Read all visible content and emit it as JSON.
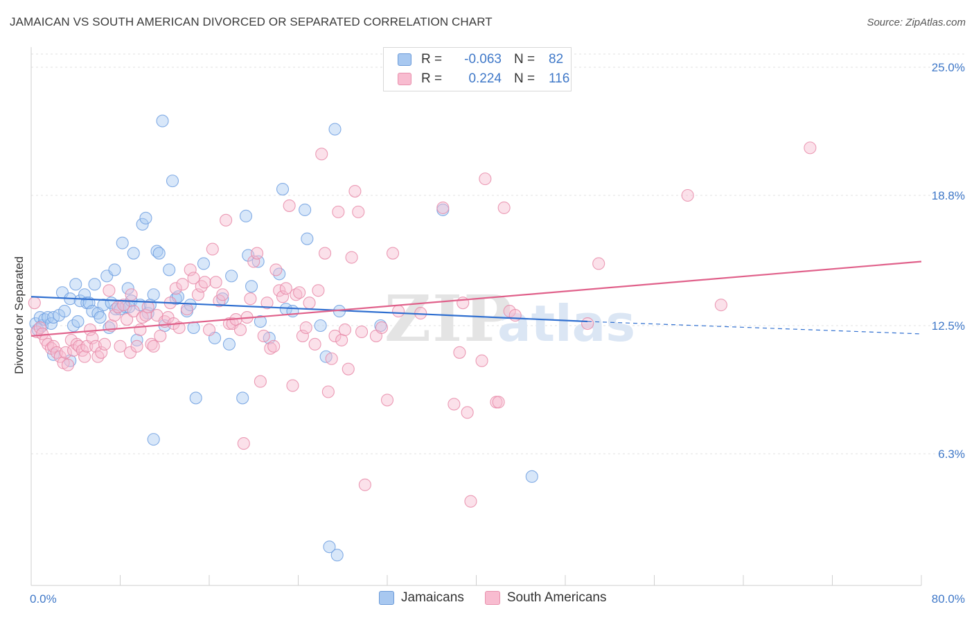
{
  "header": {
    "title": "JAMAICAN VS SOUTH AMERICAN DIVORCED OR SEPARATED CORRELATION CHART",
    "source": "Source: ZipAtlas.com"
  },
  "legend": {
    "r_label": "R =",
    "n_label": "N =",
    "rows": [
      {
        "r": "-0.063",
        "n": "82",
        "color": "#a8c8f0",
        "border": "#6a9ad8"
      },
      {
        "r": "0.224",
        "n": "116",
        "color": "#f8bcd0",
        "border": "#e890ac"
      }
    ]
  },
  "watermark": {
    "part1": "ZIP",
    "part2": "atlas"
  },
  "chart_data": {
    "type": "scatter",
    "ylabel": "Divorced or Separated",
    "xlim": [
      0,
      80
    ],
    "ylim": [
      0,
      25
    ],
    "x_tick_labels": [
      "0.0%",
      "80.0%"
    ],
    "y_ticks": [
      6.3,
      12.5,
      18.8,
      25.0
    ],
    "y_tick_labels": [
      "6.3%",
      "12.5%",
      "18.8%",
      "25.0%"
    ],
    "grid": "dashed horizontal",
    "legend_position": "top-center",
    "series": [
      {
        "name": "Jamaicans",
        "color": "#6f9fe0",
        "fill": "#a9c9f1",
        "trend": {
          "x": [
            0,
            50.0
          ],
          "y": [
            13.9,
            12.7
          ],
          "dashed_to": [
            80,
            12.1
          ]
        },
        "points": [
          [
            0.4,
            12.6
          ],
          [
            0.6,
            12.3
          ],
          [
            0.8,
            12.9
          ],
          [
            1.0,
            12.5
          ],
          [
            1.2,
            12.8
          ],
          [
            1.5,
            12.9
          ],
          [
            1.8,
            12.6
          ],
          [
            2.0,
            12.9
          ],
          [
            2.5,
            13.0
          ],
          [
            2.8,
            14.1
          ],
          [
            3.0,
            13.2
          ],
          [
            3.5,
            13.8
          ],
          [
            3.8,
            12.5
          ],
          [
            4.0,
            14.5
          ],
          [
            4.2,
            12.7
          ],
          [
            4.4,
            13.7
          ],
          [
            4.8,
            14.0
          ],
          [
            5.0,
            13.6
          ],
          [
            5.2,
            13.6
          ],
          [
            5.5,
            13.2
          ],
          [
            5.7,
            14.5
          ],
          [
            6.0,
            13.1
          ],
          [
            6.2,
            12.9
          ],
          [
            6.5,
            13.5
          ],
          [
            6.8,
            14.9
          ],
          [
            7.0,
            12.4
          ],
          [
            7.2,
            13.6
          ],
          [
            7.5,
            15.2
          ],
          [
            7.6,
            13.3
          ],
          [
            8.0,
            13.3
          ],
          [
            8.2,
            16.5
          ],
          [
            8.5,
            13.4
          ],
          [
            8.7,
            14.3
          ],
          [
            8.8,
            13.4
          ],
          [
            9.0,
            13.7
          ],
          [
            9.2,
            16.0
          ],
          [
            9.5,
            11.8
          ],
          [
            9.8,
            13.5
          ],
          [
            10.0,
            17.4
          ],
          [
            10.3,
            17.7
          ],
          [
            10.5,
            13.1
          ],
          [
            10.7,
            13.5
          ],
          [
            11.0,
            14.0
          ],
          [
            11.3,
            16.1
          ],
          [
            11.5,
            16.0
          ],
          [
            11.8,
            22.4
          ],
          [
            12.0,
            12.5
          ],
          [
            12.4,
            15.2
          ],
          [
            12.7,
            19.5
          ],
          [
            13.0,
            13.8
          ],
          [
            13.2,
            13.9
          ],
          [
            14.0,
            13.2
          ],
          [
            14.3,
            13.5
          ],
          [
            14.6,
            12.4
          ],
          [
            14.8,
            9.0
          ],
          [
            15.5,
            15.5
          ],
          [
            16.5,
            11.9
          ],
          [
            17.2,
            13.8
          ],
          [
            17.8,
            11.6
          ],
          [
            18.0,
            14.9
          ],
          [
            19.0,
            9.0
          ],
          [
            19.3,
            17.8
          ],
          [
            19.5,
            15.9
          ],
          [
            19.8,
            14.4
          ],
          [
            20.4,
            15.6
          ],
          [
            20.6,
            12.7
          ],
          [
            21.4,
            11.9
          ],
          [
            22.3,
            15.0
          ],
          [
            22.6,
            19.1
          ],
          [
            22.9,
            13.3
          ],
          [
            23.5,
            13.2
          ],
          [
            24.6,
            18.1
          ],
          [
            24.8,
            16.7
          ],
          [
            26.0,
            12.5
          ],
          [
            26.5,
            11.0
          ],
          [
            27.3,
            22.0
          ],
          [
            27.7,
            13.2
          ],
          [
            26.8,
            1.8
          ],
          [
            27.5,
            1.4
          ],
          [
            31.4,
            12.5
          ],
          [
            37.0,
            18.1
          ],
          [
            45.0,
            5.2
          ],
          [
            11.0,
            7.0
          ],
          [
            3.5,
            10.8
          ],
          [
            2.0,
            11.1
          ]
        ]
      },
      {
        "name": "South Americans",
        "color": "#e88aa8",
        "fill": "#f7bdd0",
        "trend": {
          "x": [
            0,
            80
          ],
          "y": [
            12.0,
            15.6
          ]
        },
        "points": [
          [
            0.3,
            13.6
          ],
          [
            0.5,
            12.2
          ],
          [
            0.8,
            12.4
          ],
          [
            1.0,
            12.1
          ],
          [
            1.3,
            11.8
          ],
          [
            1.5,
            11.6
          ],
          [
            1.8,
            11.4
          ],
          [
            2.0,
            11.5
          ],
          [
            2.3,
            11.2
          ],
          [
            2.6,
            11.0
          ],
          [
            2.9,
            10.7
          ],
          [
            3.1,
            11.2
          ],
          [
            3.3,
            10.6
          ],
          [
            3.6,
            11.8
          ],
          [
            3.8,
            11.3
          ],
          [
            4.1,
            11.6
          ],
          [
            4.3,
            11.5
          ],
          [
            4.6,
            11.3
          ],
          [
            4.8,
            11.0
          ],
          [
            5.0,
            11.5
          ],
          [
            5.3,
            12.3
          ],
          [
            5.5,
            11.9
          ],
          [
            5.8,
            11.5
          ],
          [
            6.0,
            11.0
          ],
          [
            6.3,
            11.2
          ],
          [
            6.6,
            11.6
          ],
          [
            7.0,
            14.2
          ],
          [
            7.2,
            12.5
          ],
          [
            7.5,
            13.0
          ],
          [
            7.8,
            13.4
          ],
          [
            8.0,
            11.5
          ],
          [
            8.3,
            13.5
          ],
          [
            8.6,
            12.8
          ],
          [
            8.9,
            11.2
          ],
          [
            9.0,
            14.0
          ],
          [
            9.2,
            13.2
          ],
          [
            9.5,
            11.5
          ],
          [
            9.8,
            12.3
          ],
          [
            10.0,
            12.9
          ],
          [
            10.3,
            13.0
          ],
          [
            10.5,
            13.4
          ],
          [
            10.8,
            11.6
          ],
          [
            11.0,
            11.5
          ],
          [
            11.3,
            13.0
          ],
          [
            11.6,
            12.0
          ],
          [
            12.0,
            12.7
          ],
          [
            12.3,
            12.9
          ],
          [
            12.5,
            13.6
          ],
          [
            12.8,
            12.6
          ],
          [
            13.0,
            14.3
          ],
          [
            13.3,
            12.4
          ],
          [
            13.6,
            14.5
          ],
          [
            14.0,
            13.3
          ],
          [
            14.3,
            15.2
          ],
          [
            14.6,
            14.8
          ],
          [
            15.0,
            14.0
          ],
          [
            15.3,
            14.4
          ],
          [
            15.6,
            14.6
          ],
          [
            16.0,
            12.3
          ],
          [
            16.3,
            16.2
          ],
          [
            16.6,
            14.6
          ],
          [
            16.9,
            13.7
          ],
          [
            17.2,
            14.0
          ],
          [
            17.5,
            17.6
          ],
          [
            17.8,
            12.6
          ],
          [
            18.1,
            12.6
          ],
          [
            18.4,
            12.8
          ],
          [
            18.8,
            12.3
          ],
          [
            19.1,
            6.8
          ],
          [
            19.4,
            12.9
          ],
          [
            19.7,
            13.8
          ],
          [
            20.0,
            15.6
          ],
          [
            20.3,
            16.0
          ],
          [
            20.6,
            9.8
          ],
          [
            20.9,
            12.0
          ],
          [
            21.2,
            13.6
          ],
          [
            21.5,
            11.4
          ],
          [
            21.8,
            11.5
          ],
          [
            22.0,
            15.2
          ],
          [
            22.3,
            14.2
          ],
          [
            22.6,
            13.9
          ],
          [
            22.9,
            14.3
          ],
          [
            23.2,
            18.3
          ],
          [
            23.5,
            9.6
          ],
          [
            23.8,
            14.0
          ],
          [
            24.1,
            14.1
          ],
          [
            24.4,
            12.0
          ],
          [
            24.7,
            12.4
          ],
          [
            25.0,
            13.6
          ],
          [
            25.5,
            11.6
          ],
          [
            25.8,
            14.2
          ],
          [
            26.1,
            20.8
          ],
          [
            26.4,
            16.0
          ],
          [
            26.7,
            9.3
          ],
          [
            27.0,
            10.9
          ],
          [
            27.3,
            12.0
          ],
          [
            27.6,
            18.0
          ],
          [
            27.9,
            11.8
          ],
          [
            28.2,
            12.3
          ],
          [
            28.5,
            10.4
          ],
          [
            28.8,
            15.8
          ],
          [
            29.1,
            19.0
          ],
          [
            29.4,
            18.0
          ],
          [
            29.7,
            12.2
          ],
          [
            30.0,
            4.8
          ],
          [
            31.0,
            12.0
          ],
          [
            31.5,
            12.4
          ],
          [
            32.0,
            8.9
          ],
          [
            32.5,
            16.0
          ],
          [
            33.0,
            13.2
          ],
          [
            35.0,
            13.1
          ],
          [
            37.0,
            18.2
          ],
          [
            38.0,
            8.7
          ],
          [
            38.5,
            11.2
          ],
          [
            39.5,
            4.0
          ],
          [
            38.8,
            13.6
          ],
          [
            39.2,
            8.3
          ],
          [
            40.5,
            10.8
          ],
          [
            40.8,
            19.6
          ],
          [
            41.8,
            8.8
          ],
          [
            42.0,
            8.8
          ],
          [
            42.5,
            18.2
          ],
          [
            43.0,
            13.2
          ],
          [
            43.5,
            13.0
          ],
          [
            50.0,
            12.6
          ],
          [
            51.0,
            15.5
          ],
          [
            59.0,
            18.8
          ],
          [
            62.0,
            13.5
          ],
          [
            70.0,
            21.1
          ]
        ]
      }
    ]
  },
  "bottom_legend": [
    {
      "label": "Jamaicans",
      "color": "#a8c8f0",
      "border": "#6a9ad8"
    },
    {
      "label": "South Americans",
      "color": "#f8bcd0",
      "border": "#e890ac"
    }
  ]
}
